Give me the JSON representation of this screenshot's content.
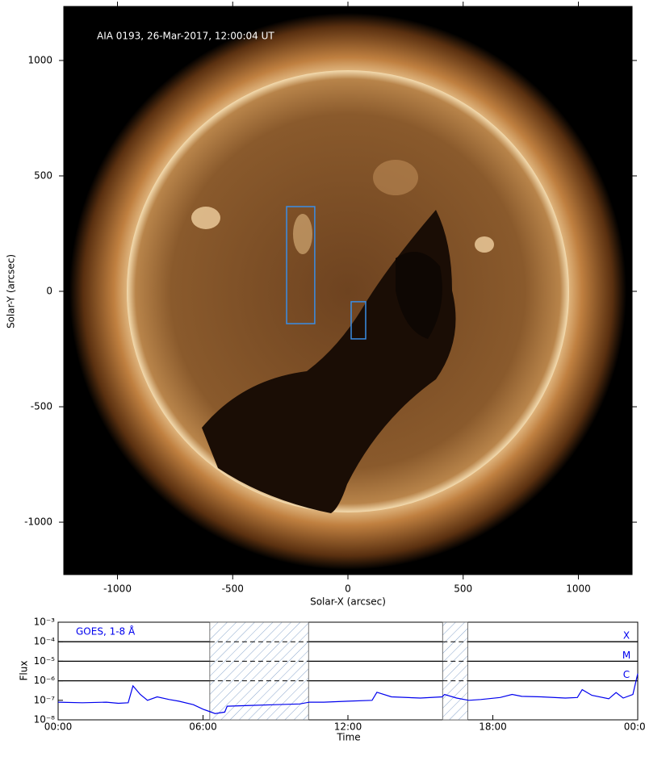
{
  "chart_data": [
    {
      "type": "image",
      "annotation": "AIA 0193, 26-Mar-2017, 12:00:04 UT",
      "xlabel": "Solar-X (arcsec)",
      "ylabel": "Solar-Y (arcsec)",
      "xlim": [
        -1233,
        1233
      ],
      "ylim": [
        -1227,
        1234
      ],
      "xticks": [
        -1000,
        -500,
        0,
        500,
        1000
      ],
      "yticks": [
        -1000,
        -500,
        0,
        500,
        1000
      ],
      "regions": [
        {
          "x": [
            -266,
            -144
          ],
          "y": [
            -140,
            367
          ]
        },
        {
          "x": [
            14,
            77
          ],
          "y": [
            -206,
            -45
          ]
        }
      ],
      "region_color": "#3a8ee6"
    },
    {
      "type": "line",
      "log_y": true,
      "xlabel": "Time",
      "ylabel": "Flux",
      "xlim": [
        0,
        24
      ],
      "ylim": [
        1e-08,
        0.001
      ],
      "xticks": [
        {
          "value": 0,
          "label": "00:00"
        },
        {
          "value": 6,
          "label": "06:00"
        },
        {
          "value": 12,
          "label": "12:00"
        },
        {
          "value": 18,
          "label": "18:00"
        },
        {
          "value": 24,
          "label": "00:00"
        }
      ],
      "yticks": [
        {
          "value": 1e-08,
          "label": "10⁻⁸"
        },
        {
          "value": 1e-07,
          "label": "10⁻⁷"
        },
        {
          "value": 1e-06,
          "label": "10⁻⁶"
        },
        {
          "value": 1e-05,
          "label": "10⁻⁵"
        },
        {
          "value": 0.0001,
          "label": "10⁻⁴"
        },
        {
          "value": 0.001,
          "label": "10⁻³"
        }
      ],
      "classes": [
        {
          "label": "X",
          "value": 0.0001
        },
        {
          "label": "M",
          "value": 1e-05
        },
        {
          "label": "C",
          "value": 1e-06
        }
      ],
      "intervals": [
        [
          6.28,
          10.37
        ],
        [
          15.92,
          16.96
        ]
      ],
      "x": [
        0,
        1,
        2,
        2.5,
        2.9,
        3.1,
        3.4,
        3.7,
        4.1,
        4.6,
        5.0,
        5.6,
        6.0,
        6.5,
        6.9,
        7.0,
        8,
        9,
        10,
        10.4,
        11,
        12,
        13,
        13.2,
        13.8,
        15,
        15.9,
        16.0,
        16.5,
        17.0,
        17.5,
        18.3,
        18.8,
        19.2,
        20,
        21,
        21.5,
        21.7,
        22.1,
        22.8,
        23.1,
        23.4,
        23.8,
        24
      ],
      "series": [
        {
          "name": "GOES, 1-8 Å",
          "color": "#0000ee",
          "values": [
            8e-08,
            7.5e-08,
            8e-08,
            7e-08,
            7.5e-08,
            5.5e-07,
            2e-07,
            1e-07,
            1.5e-07,
            1.1e-07,
            9e-08,
            6e-08,
            3.5e-08,
            2.1e-08,
            2.5e-08,
            5e-08,
            5.5e-08,
            6e-08,
            6.5e-08,
            8e-08,
            8e-08,
            9e-08,
            1e-07,
            2.6e-07,
            1.5e-07,
            1.3e-07,
            1.5e-07,
            2e-07,
            1.3e-07,
            1e-07,
            1.1e-07,
            1.4e-07,
            2e-07,
            1.6e-07,
            1.5e-07,
            1.3e-07,
            1.4e-07,
            3.5e-07,
            1.8e-07,
            1.2e-07,
            2.5e-07,
            1.3e-07,
            2e-07,
            2.3e-06
          ]
        }
      ]
    }
  ]
}
